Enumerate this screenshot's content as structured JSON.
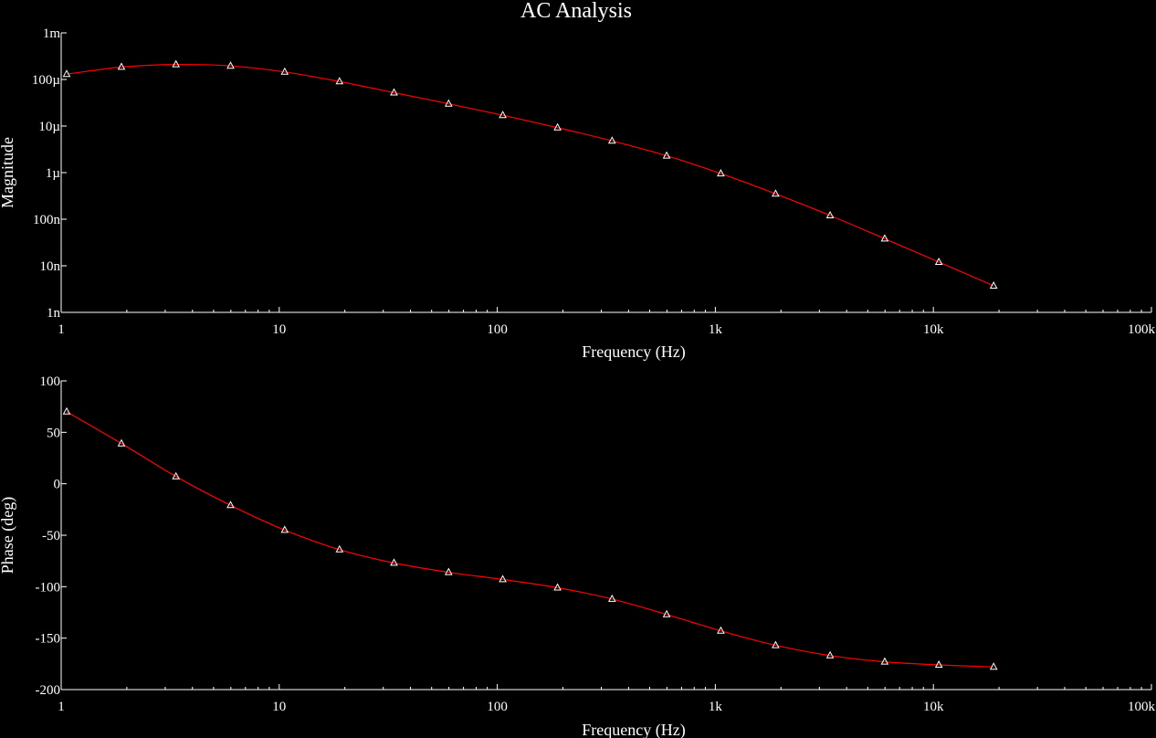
{
  "title": "AC Analysis",
  "colors": {
    "background": "#000000",
    "axes": "#ffffff",
    "trace": "#ff0000",
    "marker": "#ffffff"
  },
  "chart_data": [
    {
      "type": "line",
      "panel": "magnitude",
      "xlabel": "Frequency (Hz)",
      "ylabel": "Magnitude",
      "xscale": "log",
      "yscale": "log",
      "xlim": [
        1,
        100000
      ],
      "ylim": [
        1e-09,
        0.001
      ],
      "grid": false,
      "x_ticks": [
        {
          "value": 1,
          "label": "1"
        },
        {
          "value": 10,
          "label": "10"
        },
        {
          "value": 100,
          "label": "100"
        },
        {
          "value": 1000,
          "label": "1k"
        },
        {
          "value": 10000,
          "label": "10k"
        },
        {
          "value": 100000,
          "label": "100k"
        }
      ],
      "y_ticks": [
        {
          "value": 0.001,
          "label": "1m"
        },
        {
          "value": 0.0001,
          "label": "100µ"
        },
        {
          "value": 1e-05,
          "label": "10µ"
        },
        {
          "value": 1e-06,
          "label": "1µ"
        },
        {
          "value": 1e-07,
          "label": "100n"
        },
        {
          "value": 1e-08,
          "label": "10n"
        },
        {
          "value": 1e-09,
          "label": "1n"
        }
      ],
      "series": [
        {
          "x": [
            1.06,
            1.89,
            3.36,
            5.98,
            10.6,
            18.9,
            33.6,
            59.8,
            106,
            189,
            336,
            598,
            1060,
            1890,
            3360,
            5980,
            10600,
            18900
          ],
          "y": [
            0.00013,
            0.000185,
            0.00021,
            0.000195,
            0.000145,
            9e-05,
            5.2e-05,
            3e-05,
            1.7e-05,
            9.2e-06,
            4.8e-06,
            2.3e-06,
            9.5e-07,
            3.5e-07,
            1.2e-07,
            3.8e-08,
            1.2e-08,
            3.7e-09
          ]
        }
      ]
    },
    {
      "type": "line",
      "panel": "phase",
      "xlabel": "Frequency (Hz)",
      "ylabel": "Phase (deg)",
      "xscale": "log",
      "yscale": "linear",
      "xlim": [
        1,
        100000
      ],
      "ylim": [
        -200,
        100
      ],
      "grid": false,
      "x_ticks": [
        {
          "value": 1,
          "label": "1"
        },
        {
          "value": 10,
          "label": "10"
        },
        {
          "value": 100,
          "label": "100"
        },
        {
          "value": 1000,
          "label": "1k"
        },
        {
          "value": 10000,
          "label": "10k"
        },
        {
          "value": 100000,
          "label": "100k"
        }
      ],
      "y_ticks": [
        {
          "value": 100,
          "label": "100"
        },
        {
          "value": 50,
          "label": "50"
        },
        {
          "value": 0,
          "label": "0"
        },
        {
          "value": -50,
          "label": "-50"
        },
        {
          "value": -100,
          "label": "-100"
        },
        {
          "value": -150,
          "label": "-150"
        },
        {
          "value": -200,
          "label": "-200"
        }
      ],
      "series": [
        {
          "x": [
            1.06,
            1.89,
            3.36,
            5.98,
            10.6,
            18.9,
            33.6,
            59.8,
            106,
            189,
            336,
            598,
            1060,
            1890,
            3360,
            5980,
            10600,
            18900
          ],
          "y": [
            70,
            39,
            7,
            -21,
            -45,
            -64,
            -77,
            -86,
            -93,
            -101,
            -112,
            -127,
            -143,
            -157,
            -167,
            -173,
            -176,
            -178
          ]
        }
      ]
    }
  ]
}
